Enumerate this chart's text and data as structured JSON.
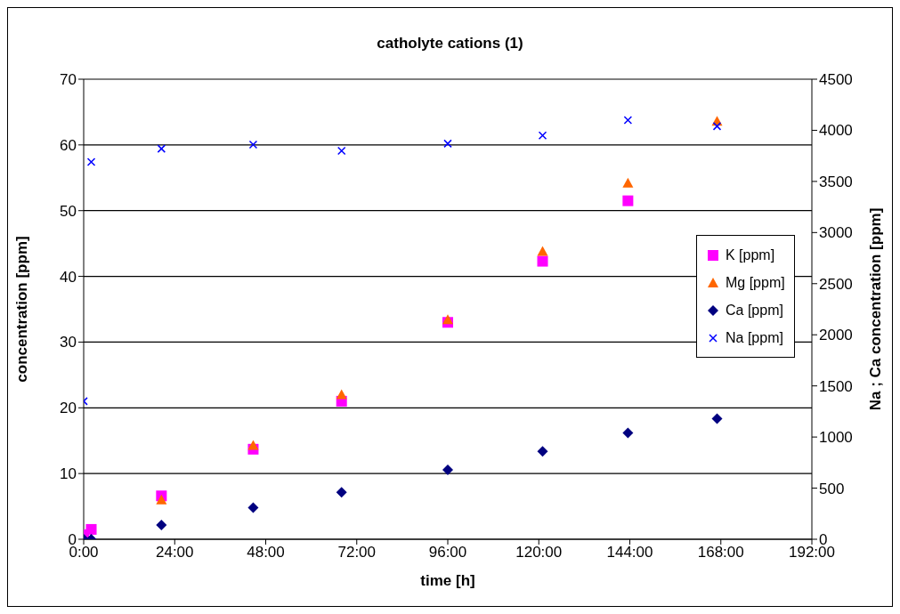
{
  "chart_data": {
    "type": "scatter",
    "title": "catholyte cations (1)",
    "xlabel": "time [h]",
    "ylabel": "concentration [ppm]",
    "y2label": "Na ; Ca concentration [ppm]",
    "x": [
      0,
      2,
      20.5,
      44.7,
      68,
      96,
      121,
      143.5,
      167
    ],
    "series": [
      {
        "name": "K [ppm]",
        "color": "#ff00ff",
        "marker": "square",
        "values": [
          0.7,
          1.5,
          6.6,
          13.7,
          21,
          33,
          42.3,
          51.5,
          null
        ]
      },
      {
        "name": "Mg [ppm]",
        "color": "#ff6600",
        "marker": "triangle",
        "values": [
          null,
          null,
          6,
          14.3,
          22,
          33.4,
          43.8,
          54.2,
          63.6
        ]
      },
      {
        "name": "Ca [ppm]",
        "color": "#000080",
        "marker": "diamond",
        "axis": "y2",
        "values": [
          0,
          0,
          140,
          310,
          460,
          680,
          860,
          1040,
          1180
        ]
      },
      {
        "name": "Na [ppm]",
        "color": "#0000ff",
        "marker": "cross",
        "axis": "y2",
        "values": [
          1350,
          3690,
          3820,
          3860,
          3800,
          3870,
          3950,
          4100,
          4040
        ]
      }
    ],
    "xlim": [
      0,
      192
    ],
    "xticks": [
      {
        "value": 0,
        "label": "0:00"
      },
      {
        "value": 24,
        "label": "24:00"
      },
      {
        "value": 48,
        "label": "48:00"
      },
      {
        "value": 72,
        "label": "72:00"
      },
      {
        "value": 96,
        "label": "96:00"
      },
      {
        "value": 120,
        "label": "120:00"
      },
      {
        "value": 144,
        "label": "144:00"
      },
      {
        "value": 168,
        "label": "168:00"
      },
      {
        "value": 192,
        "label": "192:00"
      }
    ],
    "ylim": [
      0,
      70
    ],
    "yticks": [
      0,
      10,
      20,
      30,
      40,
      50,
      60,
      70
    ],
    "y2lim": [
      0,
      4500
    ],
    "y2ticks": [
      0,
      500,
      1000,
      1500,
      2000,
      2500,
      3000,
      3500,
      4000,
      4500
    ],
    "grid": "y",
    "legend": "right"
  }
}
